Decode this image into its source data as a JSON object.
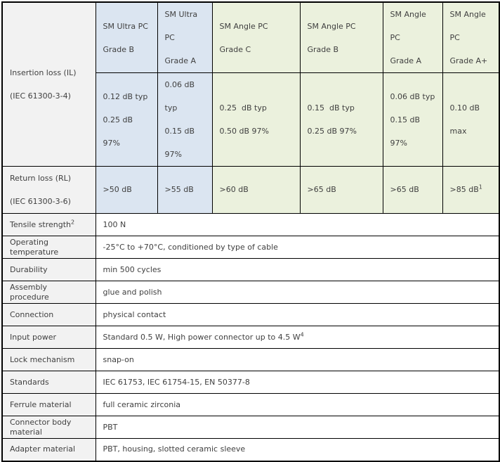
{
  "colors": {
    "header_blue": "#dbe5f1",
    "header_green": "#ebf1dd",
    "label_gray": "#f2f2f2",
    "border": "#000000",
    "text": "#404040",
    "value_bg": "#ffffff"
  },
  "table": {
    "columns": [
      {
        "id": "sm-ultra-pc-grade-b",
        "label_lines": [
          "SM Ultra PC",
          "Grade B"
        ],
        "bg": "blue"
      },
      {
        "id": "sm-ultra-pc-grade-a",
        "label_lines": [
          "SM Ultra PC",
          "Grade A"
        ],
        "bg": "blue"
      },
      {
        "id": "sm-angle-pc-grade-c",
        "label_lines": [
          "SM Angle PC Grade C"
        ],
        "bg": "green"
      },
      {
        "id": "sm-angle-pc-grade-b",
        "label_lines": [
          "SM Angle PC Grade B"
        ],
        "bg": "green"
      },
      {
        "id": "sm-angle-pc-grade-a",
        "label_lines": [
          "SM Angle PC",
          "Grade A"
        ],
        "bg": "green"
      },
      {
        "id": "sm-angle-pc-grade-a-plus",
        "label_lines": [
          "SM Angle PC",
          "Grade A+"
        ],
        "bg": "green"
      }
    ],
    "insertion_loss": {
      "label_lines": [
        "Insertion loss (IL)",
        "(IEC 61300-3-4)"
      ],
      "values": [
        [
          "0.12 dB typ",
          "0.25 dB 97%"
        ],
        [
          "0.06 dB typ",
          "0.15 dB 97%"
        ],
        [
          "0.25  dB typ",
          "0.50 dB 97%"
        ],
        [
          "0.15  dB typ",
          "0.25 dB 97%"
        ],
        [
          "0.06 dB typ",
          "0.15 dB 97%"
        ],
        [
          "0.10 dB",
          "max"
        ]
      ]
    },
    "return_loss": {
      "label_lines": [
        "Return loss (RL)",
        "(IEC 61300-3-6)"
      ],
      "values": [
        {
          "text": ">50 dB"
        },
        {
          "text": ">55 dB"
        },
        {
          "text": ">60 dB"
        },
        {
          "text": ">65 dB"
        },
        {
          "text": ">65 dB"
        },
        {
          "text": ">85 dB",
          "sup": "1"
        }
      ]
    },
    "simple_rows": [
      {
        "label": "Tensile strength",
        "label_sup": "2",
        "value": "100 N"
      },
      {
        "label": "Operating temperature",
        "value": "-25°C to +70°C, conditioned by type of cable"
      },
      {
        "label": "Durability",
        "value": "min 500 cycles"
      },
      {
        "label": "Assembly procedure",
        "value": "glue and polish"
      },
      {
        "label": "Connection",
        "value": "physical contact"
      },
      {
        "label": "Input power",
        "value": "Standard 0.5 W, High power connector up to 4.5 W",
        "value_sup": "4"
      },
      {
        "label": "Lock mechanism",
        "value": "snap-on"
      },
      {
        "label": "Standards",
        "value": "IEC 61753, IEC 61754-15, EN 50377-8"
      },
      {
        "label": "Ferrule material",
        "value": "full ceramic zirconia"
      },
      {
        "label": "Connector body material",
        "value": "PBT"
      },
      {
        "label": "Adapter material",
        "value": "PBT, housing, slotted ceramic sleeve"
      }
    ]
  }
}
